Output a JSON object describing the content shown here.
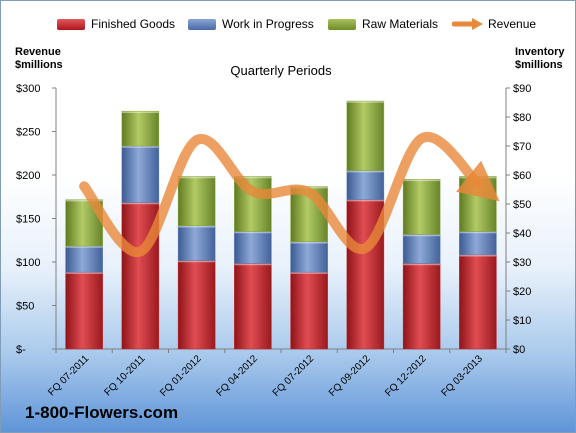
{
  "chart_data": {
    "type": "bar",
    "title": "Quarterly Periods",
    "left_axis_label": "Revenue\n$millions",
    "right_axis_label": "Inventory\n$millions",
    "categories": [
      "FQ 07-2011",
      "FQ 10-2011",
      "FQ 01-2012",
      "FQ 04-2012",
      "FQ 07-2012",
      "FQ 09-2012",
      "FQ 12-2012",
      "FQ 03-2013"
    ],
    "series": [
      {
        "name": "Finished Goods",
        "color": "#c0262b",
        "values": [
          26.5,
          50.5,
          30.5,
          29.5,
          26.5,
          51.5,
          29.5,
          32.5
        ]
      },
      {
        "name": "Work in Progress",
        "color": "#5b7db8",
        "values": [
          9.0,
          19.5,
          12.0,
          11.0,
          10.5,
          10.0,
          10.0,
          8.0
        ]
      },
      {
        "name": "Raw Materials",
        "color": "#8aa63f",
        "values": [
          16.0,
          12.0,
          17.0,
          19.0,
          19.0,
          24.0,
          19.0,
          19.0
        ]
      }
    ],
    "line_series": {
      "name": "Revenue",
      "color": "#e8883a",
      "values": [
        187,
        112,
        240,
        181,
        180,
        116,
        242,
        190
      ]
    },
    "ylim_left": [
      0,
      300
    ],
    "ylim_right": [
      0,
      90
    ],
    "left_ticks": [
      "$-",
      "$50",
      "$100",
      "$150",
      "$200",
      "$250",
      "$300"
    ],
    "right_ticks": [
      "$0",
      "$10",
      "$20",
      "$30",
      "$40",
      "$50",
      "$60",
      "$70",
      "$80",
      "$90"
    ],
    "stacked": true,
    "grid": false
  },
  "legend": {
    "finished": "Finished Goods",
    "wip": "Work in Progress",
    "raw": "Raw Materials",
    "revenue": "Revenue"
  },
  "brand": "1-800-Flowers.com"
}
